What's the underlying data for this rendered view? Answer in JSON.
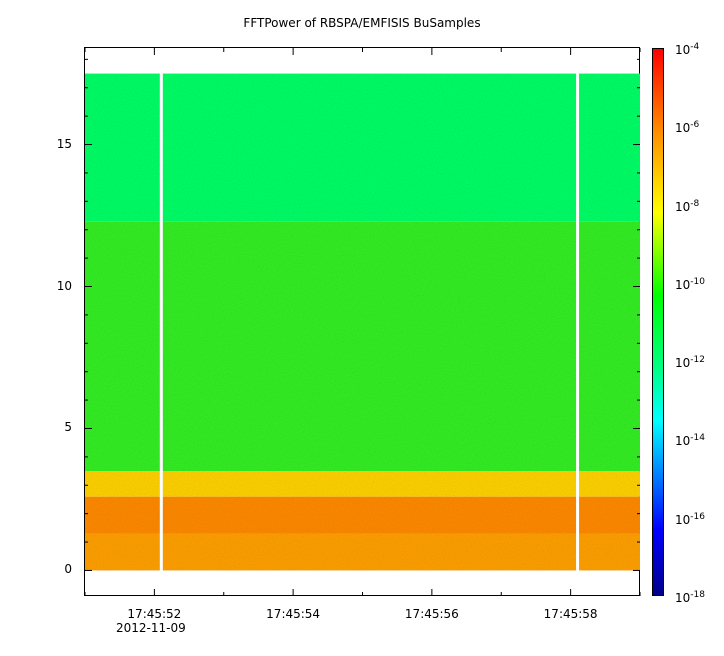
{
  "chart_data": {
    "type": "heatmap",
    "title": "FFTPower of RBSPA/EMFISIS  BuSamples",
    "xlabel": "",
    "ylabel": "",
    "x_tick_labels": [
      "17:45:52",
      "17:45:54",
      "17:45:56",
      "17:45:58"
    ],
    "x_date_label": "2012-11-09",
    "x_range": [
      "17:45:51.0",
      "17:45:59.0"
    ],
    "y_ticks": [
      0,
      5,
      10,
      15
    ],
    "y_range": [
      -0.9,
      18.4
    ],
    "colorbar": {
      "scale": "log",
      "range": [
        1e-18,
        0.0001
      ],
      "tick_bases": [
        "10",
        "10",
        "10",
        "10",
        "10",
        "10",
        "10",
        "10"
      ],
      "tick_exponents": [
        "-4",
        "-6",
        "-8",
        "-10",
        "-12",
        "-14",
        "-16",
        "-18"
      ],
      "colors": [
        "#00008b",
        "#0000ff",
        "#00ffff",
        "#00ff7f",
        "#00ff00",
        "#ffff00",
        "#ff8c00",
        "#ff0000"
      ]
    },
    "bands": [
      {
        "y_from": 0.0,
        "y_to": 1.3,
        "color": "#ffa000"
      },
      {
        "y_from": 1.3,
        "y_to": 2.6,
        "color": "#ff8a00"
      },
      {
        "y_from": 2.6,
        "y_to": 3.5,
        "color": "#ffd200"
      },
      {
        "y_from": 3.5,
        "y_to": 12.3,
        "color": "#33ee22"
      },
      {
        "y_from": 12.3,
        "y_to": 17.5,
        "color": "#00ff66"
      }
    ],
    "data_gaps_at": [
      "17:45:52.1",
      "17:45:58.1"
    ],
    "grid": false
  }
}
